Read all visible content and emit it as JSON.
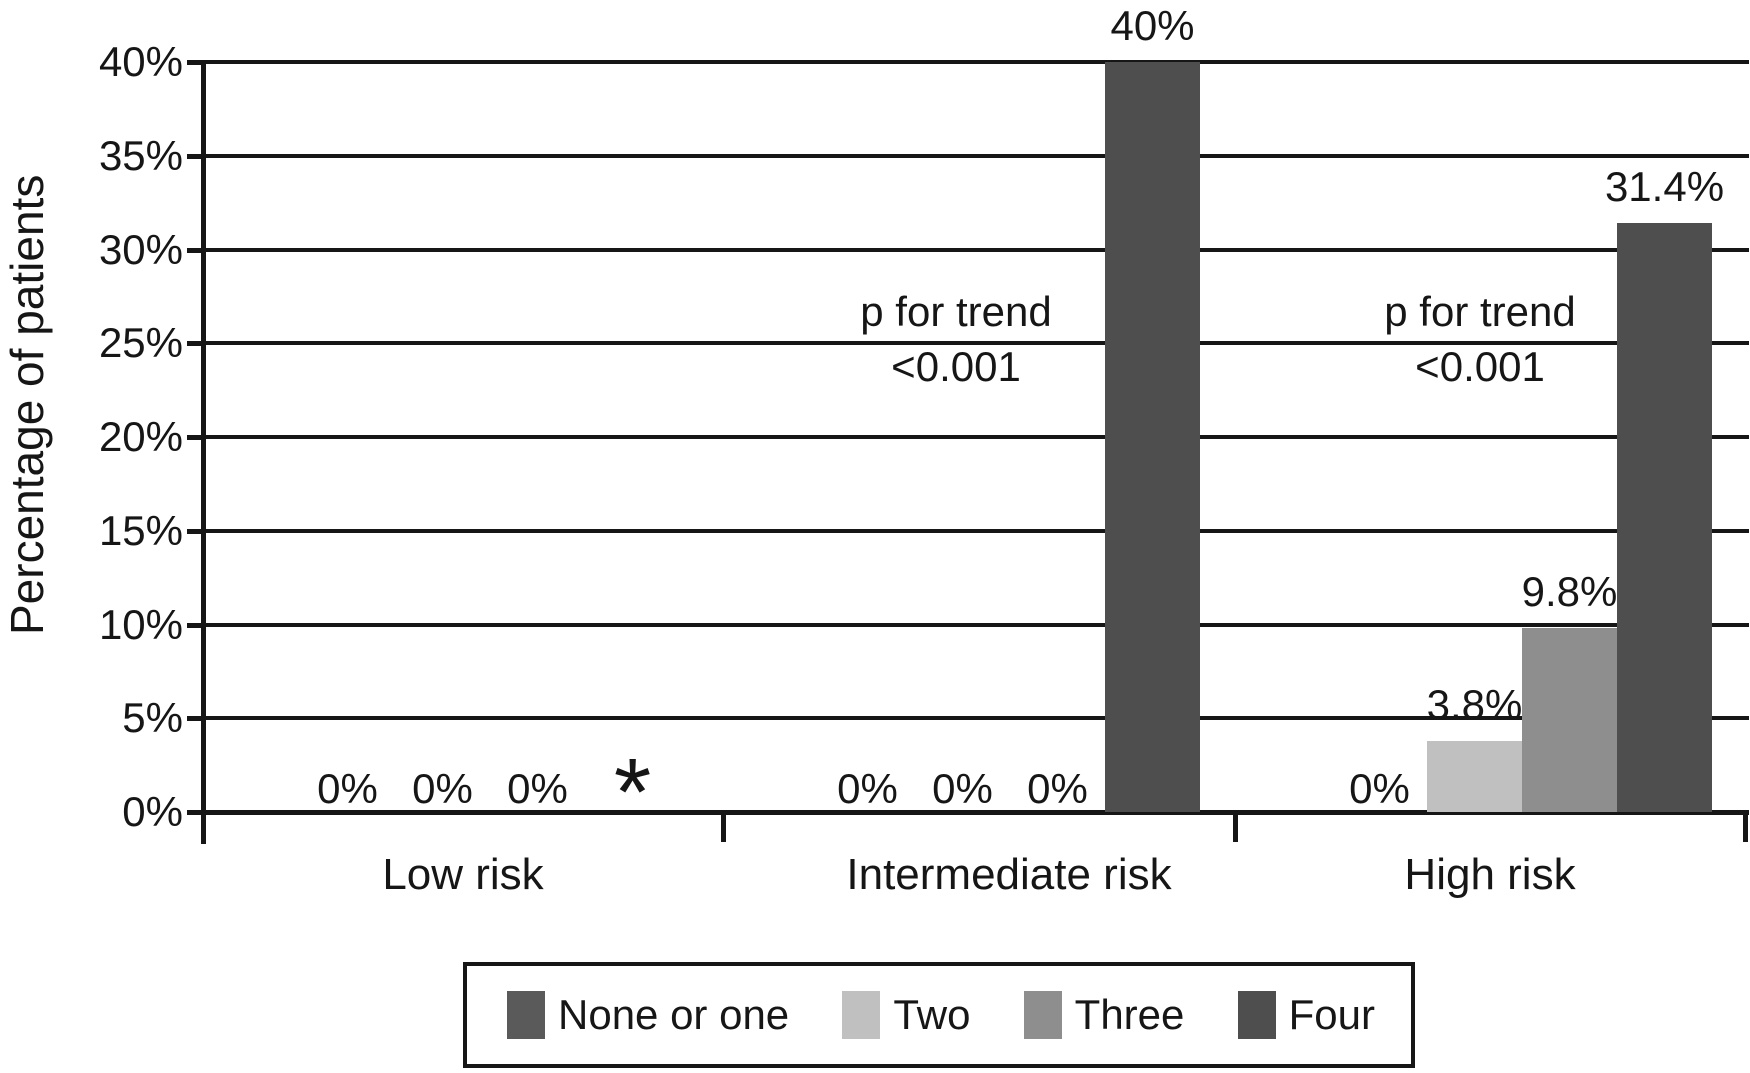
{
  "chart_data": {
    "type": "bar",
    "title": "",
    "ylabel": "Percentage of patients",
    "xlabel": "",
    "categories": [
      "Low risk",
      "Intermediate risk",
      "High risk"
    ],
    "series": [
      {
        "name": "None or one",
        "color": "#5a5a5a",
        "values": [
          0,
          0,
          0
        ],
        "labels": [
          "0%",
          "0%",
          "0%"
        ]
      },
      {
        "name": "Two",
        "color": "#c0c0c0",
        "values": [
          0,
          0,
          3.8
        ],
        "labels": [
          "0%",
          "0%",
          "3.8%"
        ]
      },
      {
        "name": "Three",
        "color": "#8e8e8e",
        "values": [
          0,
          0,
          9.8
        ],
        "labels": [
          "0%",
          "0%",
          "9.8%"
        ]
      },
      {
        "name": "Four",
        "color": "#4e4e4e",
        "values": [
          null,
          40,
          31.4
        ],
        "labels": [
          "*",
          "40%",
          "31.4%"
        ]
      }
    ],
    "annotations": [
      {
        "category": "Intermediate risk",
        "lines": [
          "p for trend",
          "<0.001"
        ]
      },
      {
        "category": "High risk",
        "lines": [
          "p for trend",
          "<0.001"
        ]
      }
    ],
    "y_ticks": [
      "40%",
      "35%",
      "30%",
      "25%",
      "20%",
      "15%",
      "10%",
      "5%",
      "0%"
    ],
    "y_tick_values": [
      40,
      35,
      30,
      25,
      20,
      15,
      10,
      5,
      0
    ],
    "ylim": [
      0,
      40
    ],
    "grid": true,
    "legend_position": "bottom",
    "axis_color": "#161616"
  }
}
